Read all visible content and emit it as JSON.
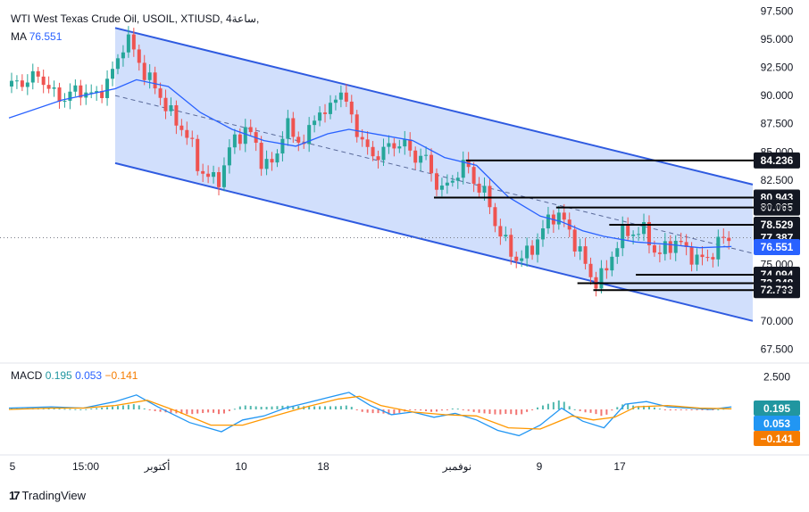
{
  "header": {
    "title": "WTI West Texas Crude Oil, USOIL, XTIUSD, 4ساعة,",
    "ma_label": "MA",
    "ma_value": "76.551",
    "macd_label": "MACD",
    "macd_v1": "0.195",
    "macd_v2": "0.053",
    "macd_v3": "−0.141"
  },
  "brand": {
    "name": "TradingView"
  },
  "colors": {
    "channel_line": "#2f5be0",
    "channel_fill": "#c9d9fb",
    "ma_line": "#2962ff",
    "bull": "#26a69a",
    "bear": "#ef5350",
    "level_line": "#000000",
    "macd_line": "#2196f3",
    "signal_line": "#ff9800"
  },
  "chart_data": [
    {
      "type": "candlestick",
      "title": "WTI West Texas Crude Oil, USOIL, XTIUSD, 4ساعة",
      "x_ticks": [
        "5",
        "15:00",
        "أكتوبر",
        "10",
        "18",
        "نوفمبر",
        "9",
        "17"
      ],
      "y_ticks": [
        "97.500",
        "95.000",
        "92.500",
        "90.000",
        "87.500",
        "85.000",
        "82.500",
        "80.000",
        "77.500",
        "75.000",
        "72.500",
        "70.000",
        "67.500"
      ],
      "ylim": [
        66.5,
        98.0
      ],
      "close_path": [
        [
          0,
          90.8
        ],
        [
          3,
          91.3
        ],
        [
          6,
          91.8
        ],
        [
          8,
          90.2
        ],
        [
          10,
          89.7
        ],
        [
          12,
          90.3
        ],
        [
          14,
          90.5
        ],
        [
          16,
          89.8
        ],
        [
          18,
          90.8
        ],
        [
          20,
          92.5
        ],
        [
          22,
          95.3
        ],
        [
          24,
          93.5
        ],
        [
          26,
          91.5
        ],
        [
          28,
          90.5
        ],
        [
          30,
          88.5
        ],
        [
          32,
          87.5
        ],
        [
          34,
          86.0
        ],
        [
          36,
          83.3
        ],
        [
          38,
          82.5
        ],
        [
          40,
          82.8
        ],
        [
          42,
          86.0
        ],
        [
          44,
          86.8
        ],
        [
          46,
          86.5
        ],
        [
          48,
          83.5
        ],
        [
          50,
          84.2
        ],
        [
          52,
          87.5
        ],
        [
          54,
          86.2
        ],
        [
          56,
          85.8
        ],
        [
          58,
          89.0
        ],
        [
          60,
          88.0
        ],
        [
          62,
          91.0
        ],
        [
          64,
          88.5
        ],
        [
          66,
          86.5
        ],
        [
          68,
          84.5
        ],
        [
          70,
          85.0
        ],
        [
          72,
          85.5
        ],
        [
          74,
          86.0
        ],
        [
          76,
          84.5
        ],
        [
          78,
          84.8
        ],
        [
          80,
          82.5
        ],
        [
          82,
          81.5
        ],
        [
          84,
          83.0
        ],
        [
          86,
          84.0
        ],
        [
          88,
          82.0
        ],
        [
          90,
          81.0
        ],
        [
          92,
          78.0
        ],
        [
          94,
          76.5
        ],
        [
          96,
          75.2
        ],
        [
          98,
          76.3
        ],
        [
          100,
          77.5
        ],
        [
          102,
          79.5
        ],
        [
          104,
          79.2
        ],
        [
          106,
          77.5
        ],
        [
          108,
          75.5
        ],
        [
          110,
          73.4
        ],
        [
          112,
          74.0
        ],
        [
          114,
          76.5
        ],
        [
          116,
          78.0
        ],
        [
          118,
          77.8
        ],
        [
          120,
          78.0
        ],
        [
          122,
          75.5
        ],
        [
          124,
          76.8
        ],
        [
          126,
          77.0
        ],
        [
          128,
          76.0
        ],
        [
          130,
          75.3
        ],
        [
          132,
          75.8
        ],
        [
          134,
          77.2
        ],
        [
          136,
          77.4
        ]
      ],
      "ma_path": [
        [
          0,
          88.0
        ],
        [
          10,
          89.6
        ],
        [
          20,
          90.6
        ],
        [
          24,
          91.4
        ],
        [
          30,
          90.8
        ],
        [
          36,
          88.5
        ],
        [
          42,
          87.0
        ],
        [
          48,
          86.0
        ],
        [
          54,
          85.5
        ],
        [
          60,
          86.6
        ],
        [
          64,
          87.0
        ],
        [
          70,
          86.5
        ],
        [
          76,
          86.0
        ],
        [
          82,
          84.5
        ],
        [
          88,
          83.8
        ],
        [
          94,
          81.0
        ],
        [
          100,
          79.3
        ],
        [
          104,
          78.8
        ],
        [
          108,
          78.0
        ],
        [
          112,
          77.5
        ],
        [
          118,
          77.0
        ],
        [
          124,
          76.8
        ],
        [
          130,
          76.5
        ],
        [
          136,
          76.6
        ]
      ],
      "channel": {
        "upper": [
          [
            20,
            96.0
          ],
          [
            140,
            82.1
          ]
        ],
        "lower": [
          [
            20,
            84.0
          ],
          [
            140,
            70.0
          ]
        ],
        "mid_dashed": [
          [
            20,
            90.0
          ],
          [
            140,
            76.0
          ]
        ]
      },
      "levels": [
        {
          "label": "84.236",
          "value": 84.236,
          "x_from": 86
        },
        {
          "label": "80.943",
          "value": 80.943,
          "x_from": 80
        },
        {
          "label": "80.065",
          "value": 80.065,
          "x_from": 103
        },
        {
          "label": "78.529",
          "value": 78.529,
          "x_from": 113
        },
        {
          "label": "74.094",
          "value": 74.094,
          "x_from": 118
        },
        {
          "label": "73.348",
          "value": 73.348,
          "x_from": 107
        },
        {
          "label": "72.733",
          "value": 72.733,
          "x_from": 110
        }
      ],
      "price_label": {
        "label": "77.387",
        "value": 77.387
      },
      "ma_label": {
        "label": "76.551",
        "value": 76.551
      }
    },
    {
      "type": "macd",
      "title": "MACD",
      "y_ticks": [
        "2.500"
      ],
      "ylim": [
        -3.2,
        3.2
      ],
      "macd_path": [
        [
          0,
          0.1
        ],
        [
          8,
          0.2
        ],
        [
          14,
          0.1
        ],
        [
          20,
          0.6
        ],
        [
          24,
          1.1
        ],
        [
          28,
          0.2
        ],
        [
          34,
          -1.0
        ],
        [
          40,
          -1.7
        ],
        [
          44,
          -0.8
        ],
        [
          48,
          -0.5
        ],
        [
          52,
          0.1
        ],
        [
          56,
          0.5
        ],
        [
          60,
          0.9
        ],
        [
          64,
          1.3
        ],
        [
          68,
          0.3
        ],
        [
          72,
          -0.4
        ],
        [
          76,
          -0.2
        ],
        [
          80,
          -0.6
        ],
        [
          84,
          -0.3
        ],
        [
          88,
          -0.8
        ],
        [
          92,
          -1.6
        ],
        [
          96,
          -2.0
        ],
        [
          100,
          -1.2
        ],
        [
          104,
          0.1
        ],
        [
          108,
          -0.9
        ],
        [
          112,
          -1.4
        ],
        [
          116,
          0.4
        ],
        [
          120,
          0.6
        ],
        [
          124,
          0.2
        ],
        [
          128,
          0.1
        ],
        [
          132,
          0.0
        ],
        [
          136,
          0.2
        ]
      ],
      "signal_path": [
        [
          0,
          0.0
        ],
        [
          8,
          0.1
        ],
        [
          14,
          0.1
        ],
        [
          20,
          0.3
        ],
        [
          26,
          0.7
        ],
        [
          32,
          -0.2
        ],
        [
          38,
          -1.2
        ],
        [
          44,
          -1.2
        ],
        [
          50,
          -0.5
        ],
        [
          56,
          0.2
        ],
        [
          62,
          0.8
        ],
        [
          66,
          1.0
        ],
        [
          70,
          0.3
        ],
        [
          76,
          -0.2
        ],
        [
          82,
          -0.4
        ],
        [
          88,
          -0.5
        ],
        [
          94,
          -1.4
        ],
        [
          100,
          -1.5
        ],
        [
          106,
          -0.5
        ],
        [
          110,
          -0.8
        ],
        [
          114,
          -0.6
        ],
        [
          118,
          0.2
        ],
        [
          124,
          0.3
        ],
        [
          130,
          0.1
        ],
        [
          136,
          0.05
        ]
      ],
      "value_labels": [
        {
          "label": "0.195",
          "color": "#2196a0"
        },
        {
          "label": "0.053",
          "color": "#2196f3"
        },
        {
          "label": "−0.141",
          "color": "#f57c00"
        }
      ]
    }
  ]
}
